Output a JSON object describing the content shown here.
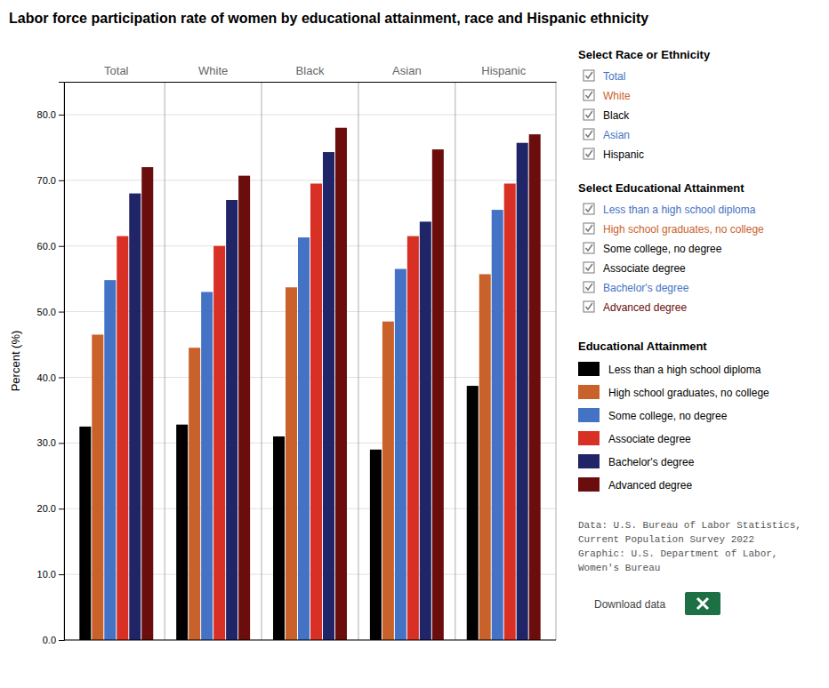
{
  "chart_data": {
    "type": "bar",
    "title": "Labor force participation rate of women by educational attainment, race and Hispanic ethnicity",
    "ylabel": "Percent (%)",
    "categories": [
      "Total",
      "White",
      "Black",
      "Asian",
      "Hispanic"
    ],
    "series": [
      {
        "name": "Less than a high school diploma",
        "color": "#000000",
        "values": [
          32.5,
          32.8,
          31.0,
          29.0,
          38.7
        ]
      },
      {
        "name": "High school graduates, no college",
        "color": "#C9622A",
        "values": [
          46.5,
          44.5,
          53.7,
          48.5,
          55.7
        ]
      },
      {
        "name": "Some college, no degree",
        "color": "#4472C4",
        "values": [
          54.8,
          53.0,
          61.3,
          56.5,
          65.5
        ]
      },
      {
        "name": "Associate degree",
        "color": "#D93025",
        "values": [
          61.5,
          60.0,
          69.5,
          61.5,
          69.5
        ]
      },
      {
        "name": "Bachelor's degree",
        "color": "#1F2566",
        "values": [
          68.0,
          67.0,
          74.3,
          63.7,
          75.7
        ]
      },
      {
        "name": "Advanced degree",
        "color": "#6B0D0D",
        "values": [
          72.0,
          70.7,
          78.0,
          74.7,
          77.0
        ]
      }
    ],
    "ylim": [
      0,
      85
    ],
    "yticks": [
      {
        "value": 0,
        "label": "0.0"
      },
      {
        "value": 10,
        "label": "10.0"
      },
      {
        "value": 20,
        "label": "20.0"
      },
      {
        "value": 30,
        "label": "30.0"
      },
      {
        "value": 40,
        "label": "40.0"
      },
      {
        "value": 50,
        "label": "50.0"
      },
      {
        "value": 60,
        "label": "60.0"
      },
      {
        "value": 70,
        "label": "70.0"
      },
      {
        "value": 80,
        "label": "80.0"
      }
    ],
    "grid": true,
    "legend": "right",
    "legend_title": "Educational Attainment",
    "filters": [
      {
        "title": "Select Race or Ethnicity",
        "items": [
          {
            "text": "Total",
            "color": "#4472C4"
          },
          {
            "text": "White",
            "color": "#C9622A"
          },
          {
            "text": "Black",
            "color": "#000000"
          },
          {
            "text": "Asian",
            "color": "#4472C4"
          },
          {
            "text": "Hispanic",
            "color": "#000000"
          }
        ]
      },
      {
        "title": "Select Educational Attainment",
        "items": [
          {
            "text": "Less than a high school diploma",
            "color": "#4472C4"
          },
          {
            "text": "High school graduates, no college",
            "color": "#C9622A"
          },
          {
            "text": "Some college, no degree",
            "color": "#000000"
          },
          {
            "text": "Associate degree",
            "color": "#000000"
          },
          {
            "text": "Bachelor's degree",
            "color": "#4472C4"
          },
          {
            "text": "Advanced degree",
            "color": "#6B0D0D"
          }
        ]
      }
    ],
    "source": "Data: U.S. Bureau of Labor Statistics,\nCurrent Population Survey 2022\nGraphic: U.S. Department of Labor,\nWomen's Bureau",
    "download_text": "Download data"
  }
}
